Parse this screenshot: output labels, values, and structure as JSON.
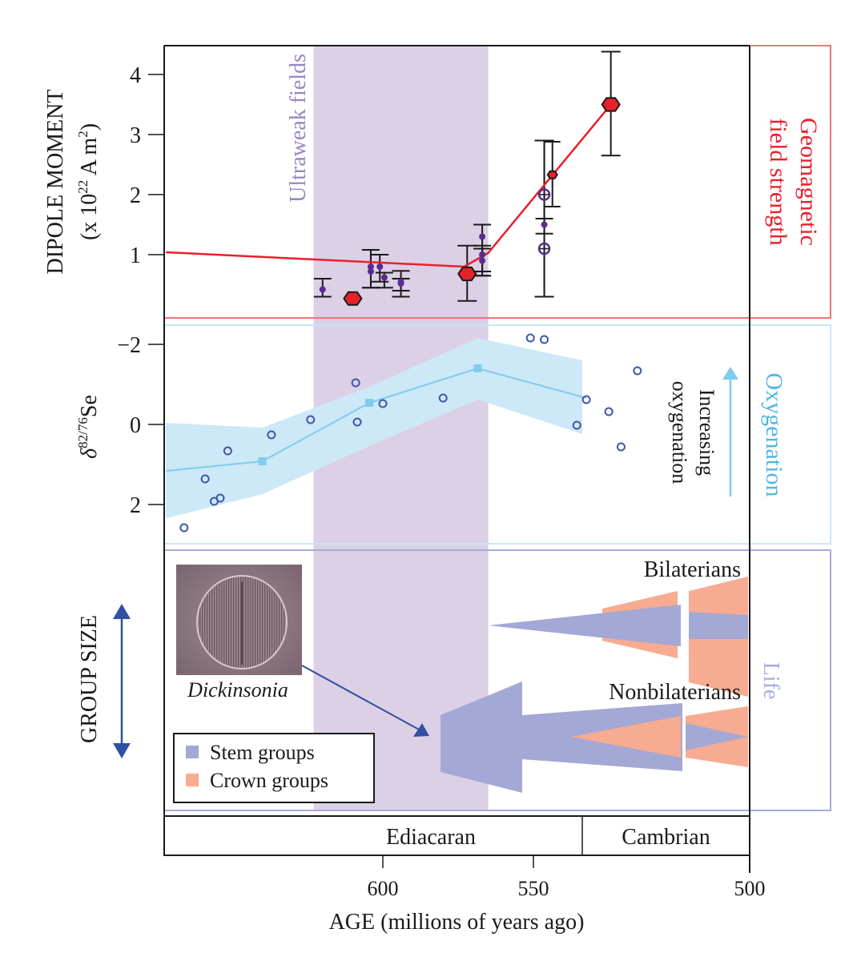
{
  "chart_data": [
    {
      "type": "scatter",
      "panel": "dipole-moment",
      "ylabel_line1": "DIPOLE MOMENT",
      "ylabel_line2_prefix": "(x 10",
      "ylabel_line2_exp": "22",
      "ylabel_line2_suffix": " A m",
      "ylabel_line2_exp2": "2",
      "ylabel_line2_close": ")",
      "ylim": [
        0,
        4.4
      ],
      "yticks": [
        1,
        2,
        3,
        4
      ],
      "side_label_line1": "Geomagnetic",
      "side_label_line2": "field strength",
      "band_label": "Ultraweak fields",
      "trend_line": [
        {
          "age": 672,
          "value": 1.04
        },
        {
          "age": 573,
          "value": 0.8
        },
        {
          "age": 565,
          "value": 1.03
        },
        {
          "age": 534,
          "value": 3.5
        }
      ],
      "large_hexagons": [
        {
          "age": 610,
          "value": 0.27,
          "err": null
        },
        {
          "age": 572,
          "value": 0.68,
          "err": [
            0.23,
            1.15
          ]
        },
        {
          "age": 534,
          "value": 3.5,
          "err": [
            2.65,
            4.38
          ]
        }
      ],
      "small_hexagons": [
        {
          "age": 546.5,
          "value": 2.33,
          "err": [
            1.8,
            2.88
          ]
        }
      ],
      "purple_dots": [
        {
          "age": 620,
          "value": 0.42,
          "err": [
            0.3,
            0.6
          ]
        },
        {
          "age": 604,
          "value": 0.8,
          "err": [
            0.45,
            1.08
          ]
        },
        {
          "age": 604,
          "value": 0.72,
          "err": [
            0.45,
            1.08
          ]
        },
        {
          "age": 601,
          "value": 0.8,
          "err": [
            0.55,
            1.0
          ]
        },
        {
          "age": 599.5,
          "value": 0.62,
          "err": [
            0.45,
            0.7
          ]
        },
        {
          "age": 594,
          "value": 0.55,
          "err": [
            0.3,
            0.73
          ]
        },
        {
          "age": 594,
          "value": 0.52,
          "err": [
            0.4,
            0.6
          ]
        },
        {
          "age": 567,
          "value": 1.3,
          "err": [
            0.72,
            1.5
          ]
        },
        {
          "age": 567,
          "value": 1.0,
          "err": [
            0.65,
            1.15
          ]
        },
        {
          "age": 567,
          "value": 0.9,
          "err": [
            0.65,
            1.1
          ]
        },
        {
          "age": 548,
          "value": 1.5,
          "err": [
            1.35,
            1.6
          ]
        }
      ],
      "open_circles": [
        {
          "age": 548,
          "value": 2.0,
          "err": [
            0.3,
            2.9
          ]
        },
        {
          "age": 548,
          "value": 1.1,
          "err": [
            0.3,
            2.9
          ]
        }
      ]
    },
    {
      "type": "line",
      "panel": "selenium-isotope",
      "ylabel_delta": "δ",
      "ylabel_exp": "82/76",
      "ylabel_el": "Se",
      "ylim": [
        3.0,
        -2.5
      ],
      "yticks": [
        -2,
        0,
        2
      ],
      "ytick_labels": [
        "−2",
        "0",
        "2"
      ],
      "side_label": "Oxygenation",
      "arrow_label_line1": "Increasing",
      "arrow_label_line2": "oxygenation",
      "mean_line": [
        {
          "age": 672,
          "value": 1.16
        },
        {
          "age": 640,
          "value": 0.92
        },
        {
          "age": 604.5,
          "value": -0.54
        },
        {
          "age": 568.5,
          "value": -1.4
        },
        {
          "age": 540,
          "value": -0.66
        }
      ],
      "band_upper": [
        {
          "age": 672,
          "value": -0.04
        },
        {
          "age": 640,
          "value": 0.08
        },
        {
          "age": 604.5,
          "value": -0.94
        },
        {
          "age": 568.5,
          "value": -2.16
        },
        {
          "age": 541,
          "value": -1.6
        }
      ],
      "band_lower": [
        {
          "age": 672,
          "value": 2.34
        },
        {
          "age": 640,
          "value": 1.74
        },
        {
          "age": 604.5,
          "value": 0.54
        },
        {
          "age": 568.5,
          "value": -0.62
        },
        {
          "age": 541,
          "value": 0.24
        }
      ],
      "points": [
        {
          "age": 666,
          "value": 2.58
        },
        {
          "age": 659,
          "value": 1.36
        },
        {
          "age": 656,
          "value": 1.92
        },
        {
          "age": 654,
          "value": 1.84
        },
        {
          "age": 651.5,
          "value": 0.66
        },
        {
          "age": 637,
          "value": 0.26
        },
        {
          "age": 624,
          "value": -0.12
        },
        {
          "age": 609,
          "value": -1.04
        },
        {
          "age": 608.5,
          "value": -0.06
        },
        {
          "age": 600,
          "value": -0.52
        },
        {
          "age": 580,
          "value": -0.66
        },
        {
          "age": 551,
          "value": -2.16
        },
        {
          "age": 548,
          "value": -2.12
        },
        {
          "age": 542,
          "value": 0.02
        },
        {
          "age": 540,
          "value": -0.62
        },
        {
          "age": 534.5,
          "value": -0.32
        },
        {
          "age": 531.5,
          "value": 0.56
        },
        {
          "age": 527.5,
          "value": -1.34
        }
      ]
    },
    {
      "type": "area",
      "panel": "group-size",
      "ylabel": "GROUP SIZE",
      "side_label": "Life",
      "image_caption": "Dickinsonia",
      "legend": [
        {
          "label": "Stem groups",
          "color": "#a4a8d4"
        },
        {
          "label": "Crown groups",
          "color": "#f7ab90"
        }
      ],
      "groups": [
        {
          "label": "Bilaterians"
        },
        {
          "label": "Nonbilaterians"
        }
      ]
    }
  ],
  "x_axis": {
    "label": "AGE (millions of years ago)",
    "reversed": true,
    "xlim": [
      672,
      500
    ],
    "ticks": [
      600,
      550,
      500
    ],
    "tick_labels": [
      "600",
      "550",
      "500"
    ]
  },
  "periods": [
    {
      "label": "Ediacaran",
      "start": 672,
      "end": 541
    },
    {
      "label": "Cambrian",
      "start": 541,
      "end": 500
    }
  ],
  "ultraweak_band": {
    "start": 623,
    "end": 565
  },
  "colors": {
    "geomagnetic": "#e8202a",
    "geomagnetic_frame": "#f0757a",
    "oxygenation": "#52b6e4",
    "oxygenation_band": "#cde8f6",
    "oxygenation_frame": "#c8e6f5",
    "life_frame": "#a8abd8",
    "ultraweak_band": "#dcd0e6",
    "ultraweak_text": "#9a86c2",
    "purple_points": "#5a2c91",
    "se_points": "#3f57a8",
    "stem": "#a4a8d4",
    "crown": "#f7ab90",
    "arrow_blue": "#3050a0"
  }
}
